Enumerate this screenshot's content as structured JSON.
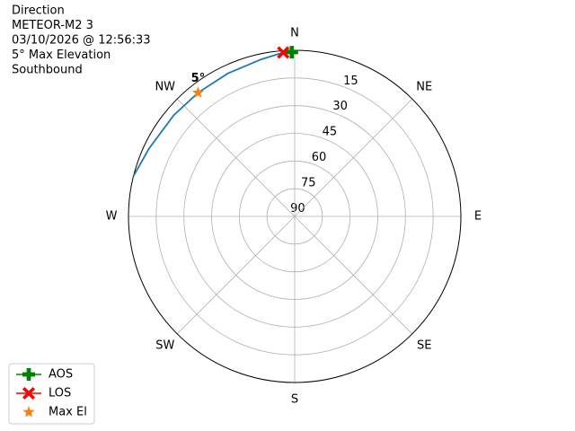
{
  "chart_data": {
    "type": "polar",
    "title_lines": [
      "Direction",
      "METEOR-M2 3",
      "03/10/2026 @ 12:56:33",
      "5° Max Elevation",
      "Southbound"
    ],
    "theta_direction": "clockwise",
    "theta_zero": "N",
    "thetaticks": [
      {
        "value": 0,
        "label": "N"
      },
      {
        "value": 45,
        "label": "NE"
      },
      {
        "value": 90,
        "label": "E"
      },
      {
        "value": 135,
        "label": "SE"
      },
      {
        "value": 180,
        "label": "S"
      },
      {
        "value": 225,
        "label": "SW"
      },
      {
        "value": 270,
        "label": "W"
      },
      {
        "value": 315,
        "label": "NW"
      }
    ],
    "rlim": [
      90,
      0
    ],
    "rticks": [
      15,
      30,
      45,
      60,
      75,
      90
    ],
    "grid": true,
    "legend": "lower left",
    "series": [
      {
        "color": "#1f77b4",
        "marker": "line",
        "x": [
          284,
          295,
          310,
          322,
          335,
          348,
          356,
          359
        ],
        "values": [
          0,
          3,
          4.6,
          5,
          4.5,
          3,
          1,
          1
        ]
      },
      {
        "name": "AOS",
        "color": "green",
        "marker": "plus",
        "x": [
          359
        ],
        "values": [
          1
        ]
      },
      {
        "name": "LOS",
        "color": "red",
        "marker": "x",
        "x": [
          356
        ],
        "values": [
          1
        ]
      },
      {
        "name": "Max El",
        "color": "#ff7f0e",
        "marker": "star",
        "x": [
          322
        ],
        "values": [
          5
        ],
        "value_labels": [
          "5°"
        ]
      }
    ]
  }
}
